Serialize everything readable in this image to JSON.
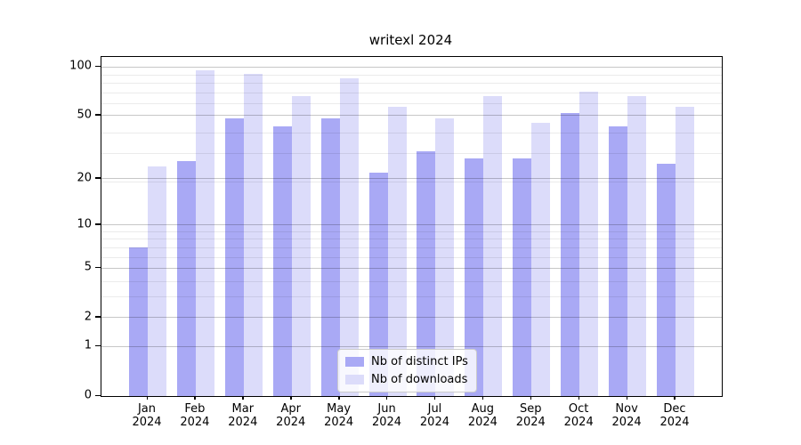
{
  "title": "writexl 2024",
  "colors": {
    "ips_bar": "#a9a9f5",
    "downloads_bar": "#dcdcfa",
    "grid_major": "rgba(0,0,0,0.22)",
    "grid_minor": "rgba(0,0,0,0.08)",
    "axis": "#000000",
    "legend_border": "#cccccc",
    "background": "#ffffff"
  },
  "legend": {
    "items": [
      {
        "label": "Nb of distinct IPs",
        "color_key": "ips_bar"
      },
      {
        "label": "Nb of downloads",
        "color_key": "downloads_bar"
      }
    ]
  },
  "x_axis": {
    "months": [
      "Jan",
      "Feb",
      "Mar",
      "Apr",
      "May",
      "Jun",
      "Jul",
      "Aug",
      "Sep",
      "Oct",
      "Nov",
      "Dec"
    ],
    "year": "2024"
  },
  "y_axis": {
    "major_ticks": [
      {
        "value": 100,
        "label": "100"
      },
      {
        "value": 50,
        "label": "50"
      },
      {
        "value": 20,
        "label": "20"
      },
      {
        "value": 10,
        "label": "10"
      },
      {
        "value": 5,
        "label": "5"
      },
      {
        "value": 2,
        "label": "2"
      },
      {
        "value": 1,
        "label": "1"
      },
      {
        "value": 0,
        "label": "0"
      }
    ],
    "minor_tick_values": [
      3,
      4,
      6,
      7,
      8,
      9,
      19,
      29,
      39,
      59,
      69,
      79,
      89
    ],
    "scale": "log10(value+1)",
    "axis_max": 115
  },
  "chart_data": {
    "type": "bar",
    "title": "writexl 2024",
    "categories": [
      "Jan 2024",
      "Feb 2024",
      "Mar 2024",
      "Apr 2024",
      "May 2024",
      "Jun 2024",
      "Jul 2024",
      "Aug 2024",
      "Sep 2024",
      "Oct 2024",
      "Nov 2024",
      "Dec 2024"
    ],
    "series": [
      {
        "name": "Nb of distinct IPs",
        "values": [
          7,
          26,
          48,
          43,
          48,
          22,
          30,
          27,
          27,
          52,
          43,
          25
        ]
      },
      {
        "name": "Nb of downloads",
        "values": [
          24,
          95,
          90,
          66,
          85,
          57,
          48,
          66,
          45,
          70,
          66,
          57
        ]
      }
    ],
    "xlabel": "",
    "ylabel": "",
    "y_scale": "log(value+1)",
    "y_ticks": [
      0,
      1,
      2,
      5,
      10,
      20,
      50,
      100
    ],
    "ylim": [
      0,
      115
    ],
    "grid": true,
    "legend_position": "lower center"
  }
}
